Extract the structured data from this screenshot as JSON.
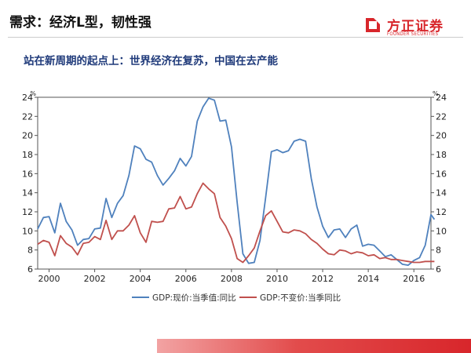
{
  "slide": {
    "title": "需求：经济L型，韧性强",
    "subtitle": "站在新周期的起点上：世界经济在复苏，中国在去产能"
  },
  "brand": {
    "name_cn": "方正证券",
    "name_en": "FOUNDER SECURITIES",
    "color": "#d8262b"
  },
  "chart_data": {
    "type": "line",
    "title": "",
    "xlabel": "",
    "ylabel_left": "%",
    "ylabel_right": "%",
    "ylim": [
      6,
      24
    ],
    "y_ticks": [
      6,
      8,
      10,
      12,
      14,
      16,
      18,
      20,
      22,
      24
    ],
    "xlim": [
      1999.5,
      2016.75
    ],
    "x_ticks": [
      2000,
      2002,
      2004,
      2006,
      2008,
      2010,
      2012,
      2014,
      2016
    ],
    "grid": false,
    "legend_position": "bottom",
    "series": [
      {
        "name": "GDP:现价:当季值:同比",
        "color": "#4f81bd",
        "points": [
          [
            1999.5,
            10.2
          ],
          [
            1999.75,
            11.4
          ],
          [
            2000.0,
            11.5
          ],
          [
            2000.25,
            9.8
          ],
          [
            2000.5,
            12.9
          ],
          [
            2000.75,
            11.0
          ],
          [
            2001.0,
            10.1
          ],
          [
            2001.25,
            8.5
          ],
          [
            2001.5,
            9.1
          ],
          [
            2001.75,
            9.2
          ],
          [
            2002.0,
            10.2
          ],
          [
            2002.25,
            10.3
          ],
          [
            2002.5,
            13.4
          ],
          [
            2002.75,
            11.4
          ],
          [
            2003.0,
            12.9
          ],
          [
            2003.25,
            13.7
          ],
          [
            2003.5,
            15.8
          ],
          [
            2003.75,
            18.9
          ],
          [
            2004.0,
            18.6
          ],
          [
            2004.25,
            17.5
          ],
          [
            2004.5,
            17.2
          ],
          [
            2004.75,
            15.8
          ],
          [
            2005.0,
            14.8
          ],
          [
            2005.25,
            15.5
          ],
          [
            2005.5,
            16.3
          ],
          [
            2005.75,
            17.6
          ],
          [
            2006.0,
            16.8
          ],
          [
            2006.25,
            17.8
          ],
          [
            2006.5,
            21.5
          ],
          [
            2006.75,
            23.0
          ],
          [
            2007.0,
            23.9
          ],
          [
            2007.25,
            23.7
          ],
          [
            2007.5,
            21.5
          ],
          [
            2007.75,
            21.6
          ],
          [
            2008.0,
            18.8
          ],
          [
            2008.25,
            13.0
          ],
          [
            2008.5,
            7.6
          ],
          [
            2008.75,
            6.6
          ],
          [
            2009.0,
            6.7
          ],
          [
            2009.25,
            9.0
          ],
          [
            2009.5,
            13.5
          ],
          [
            2009.75,
            18.3
          ],
          [
            2010.0,
            18.5
          ],
          [
            2010.25,
            18.2
          ],
          [
            2010.5,
            18.4
          ],
          [
            2010.75,
            19.4
          ],
          [
            2011.0,
            19.6
          ],
          [
            2011.25,
            19.4
          ],
          [
            2011.5,
            15.5
          ],
          [
            2011.75,
            12.5
          ],
          [
            2012.0,
            10.5
          ],
          [
            2012.25,
            9.3
          ],
          [
            2012.5,
            10.1
          ],
          [
            2012.75,
            10.2
          ],
          [
            2013.0,
            9.3
          ],
          [
            2013.25,
            10.2
          ],
          [
            2013.5,
            10.6
          ],
          [
            2013.75,
            8.4
          ],
          [
            2014.0,
            8.6
          ],
          [
            2014.25,
            8.5
          ],
          [
            2014.5,
            7.9
          ],
          [
            2014.75,
            7.3
          ],
          [
            2015.0,
            7.5
          ],
          [
            2015.25,
            7.0
          ],
          [
            2015.5,
            6.5
          ],
          [
            2015.75,
            6.4
          ],
          [
            2016.0,
            6.9
          ],
          [
            2016.25,
            7.2
          ],
          [
            2016.5,
            8.5
          ],
          [
            2016.75,
            11.7
          ],
          [
            2016.9,
            11.2
          ]
        ]
      },
      {
        "name": "GDP:不变价:当季同比",
        "color": "#c0504d",
        "points": [
          [
            1999.5,
            8.6
          ],
          [
            1999.75,
            9.0
          ],
          [
            2000.0,
            8.8
          ],
          [
            2000.25,
            7.4
          ],
          [
            2000.5,
            9.5
          ],
          [
            2000.75,
            8.7
          ],
          [
            2001.0,
            8.3
          ],
          [
            2001.25,
            7.5
          ],
          [
            2001.5,
            8.7
          ],
          [
            2001.75,
            8.8
          ],
          [
            2002.0,
            9.4
          ],
          [
            2002.25,
            9.1
          ],
          [
            2002.5,
            11.1
          ],
          [
            2002.75,
            9.1
          ],
          [
            2003.0,
            10.0
          ],
          [
            2003.25,
            10.0
          ],
          [
            2003.5,
            10.6
          ],
          [
            2003.75,
            11.6
          ],
          [
            2004.0,
            9.8
          ],
          [
            2004.25,
            8.8
          ],
          [
            2004.5,
            11.0
          ],
          [
            2004.75,
            10.9
          ],
          [
            2005.0,
            11.0
          ],
          [
            2005.25,
            12.3
          ],
          [
            2005.5,
            12.4
          ],
          [
            2005.75,
            13.6
          ],
          [
            2006.0,
            12.3
          ],
          [
            2006.25,
            12.5
          ],
          [
            2006.5,
            13.9
          ],
          [
            2006.75,
            15.0
          ],
          [
            2007.0,
            14.4
          ],
          [
            2007.25,
            13.9
          ],
          [
            2007.5,
            11.4
          ],
          [
            2007.75,
            10.5
          ],
          [
            2008.0,
            9.2
          ],
          [
            2008.25,
            7.1
          ],
          [
            2008.5,
            6.7
          ],
          [
            2008.75,
            7.4
          ],
          [
            2009.0,
            8.2
          ],
          [
            2009.25,
            10.0
          ],
          [
            2009.5,
            11.6
          ],
          [
            2009.75,
            12.1
          ],
          [
            2010.0,
            11.0
          ],
          [
            2010.25,
            9.9
          ],
          [
            2010.5,
            9.8
          ],
          [
            2010.75,
            10.1
          ],
          [
            2011.0,
            10.0
          ],
          [
            2011.25,
            9.7
          ],
          [
            2011.5,
            9.1
          ],
          [
            2011.75,
            8.7
          ],
          [
            2012.0,
            8.1
          ],
          [
            2012.25,
            7.6
          ],
          [
            2012.5,
            7.5
          ],
          [
            2012.75,
            8.0
          ],
          [
            2013.0,
            7.9
          ],
          [
            2013.25,
            7.6
          ],
          [
            2013.5,
            7.8
          ],
          [
            2013.75,
            7.7
          ],
          [
            2014.0,
            7.4
          ],
          [
            2014.25,
            7.5
          ],
          [
            2014.5,
            7.1
          ],
          [
            2014.75,
            7.2
          ],
          [
            2015.0,
            7.0
          ],
          [
            2015.25,
            7.0
          ],
          [
            2015.5,
            6.9
          ],
          [
            2015.75,
            6.8
          ],
          [
            2016.0,
            6.7
          ],
          [
            2016.25,
            6.7
          ],
          [
            2016.5,
            6.8
          ],
          [
            2016.75,
            6.8
          ],
          [
            2016.9,
            6.8
          ]
        ]
      }
    ]
  }
}
